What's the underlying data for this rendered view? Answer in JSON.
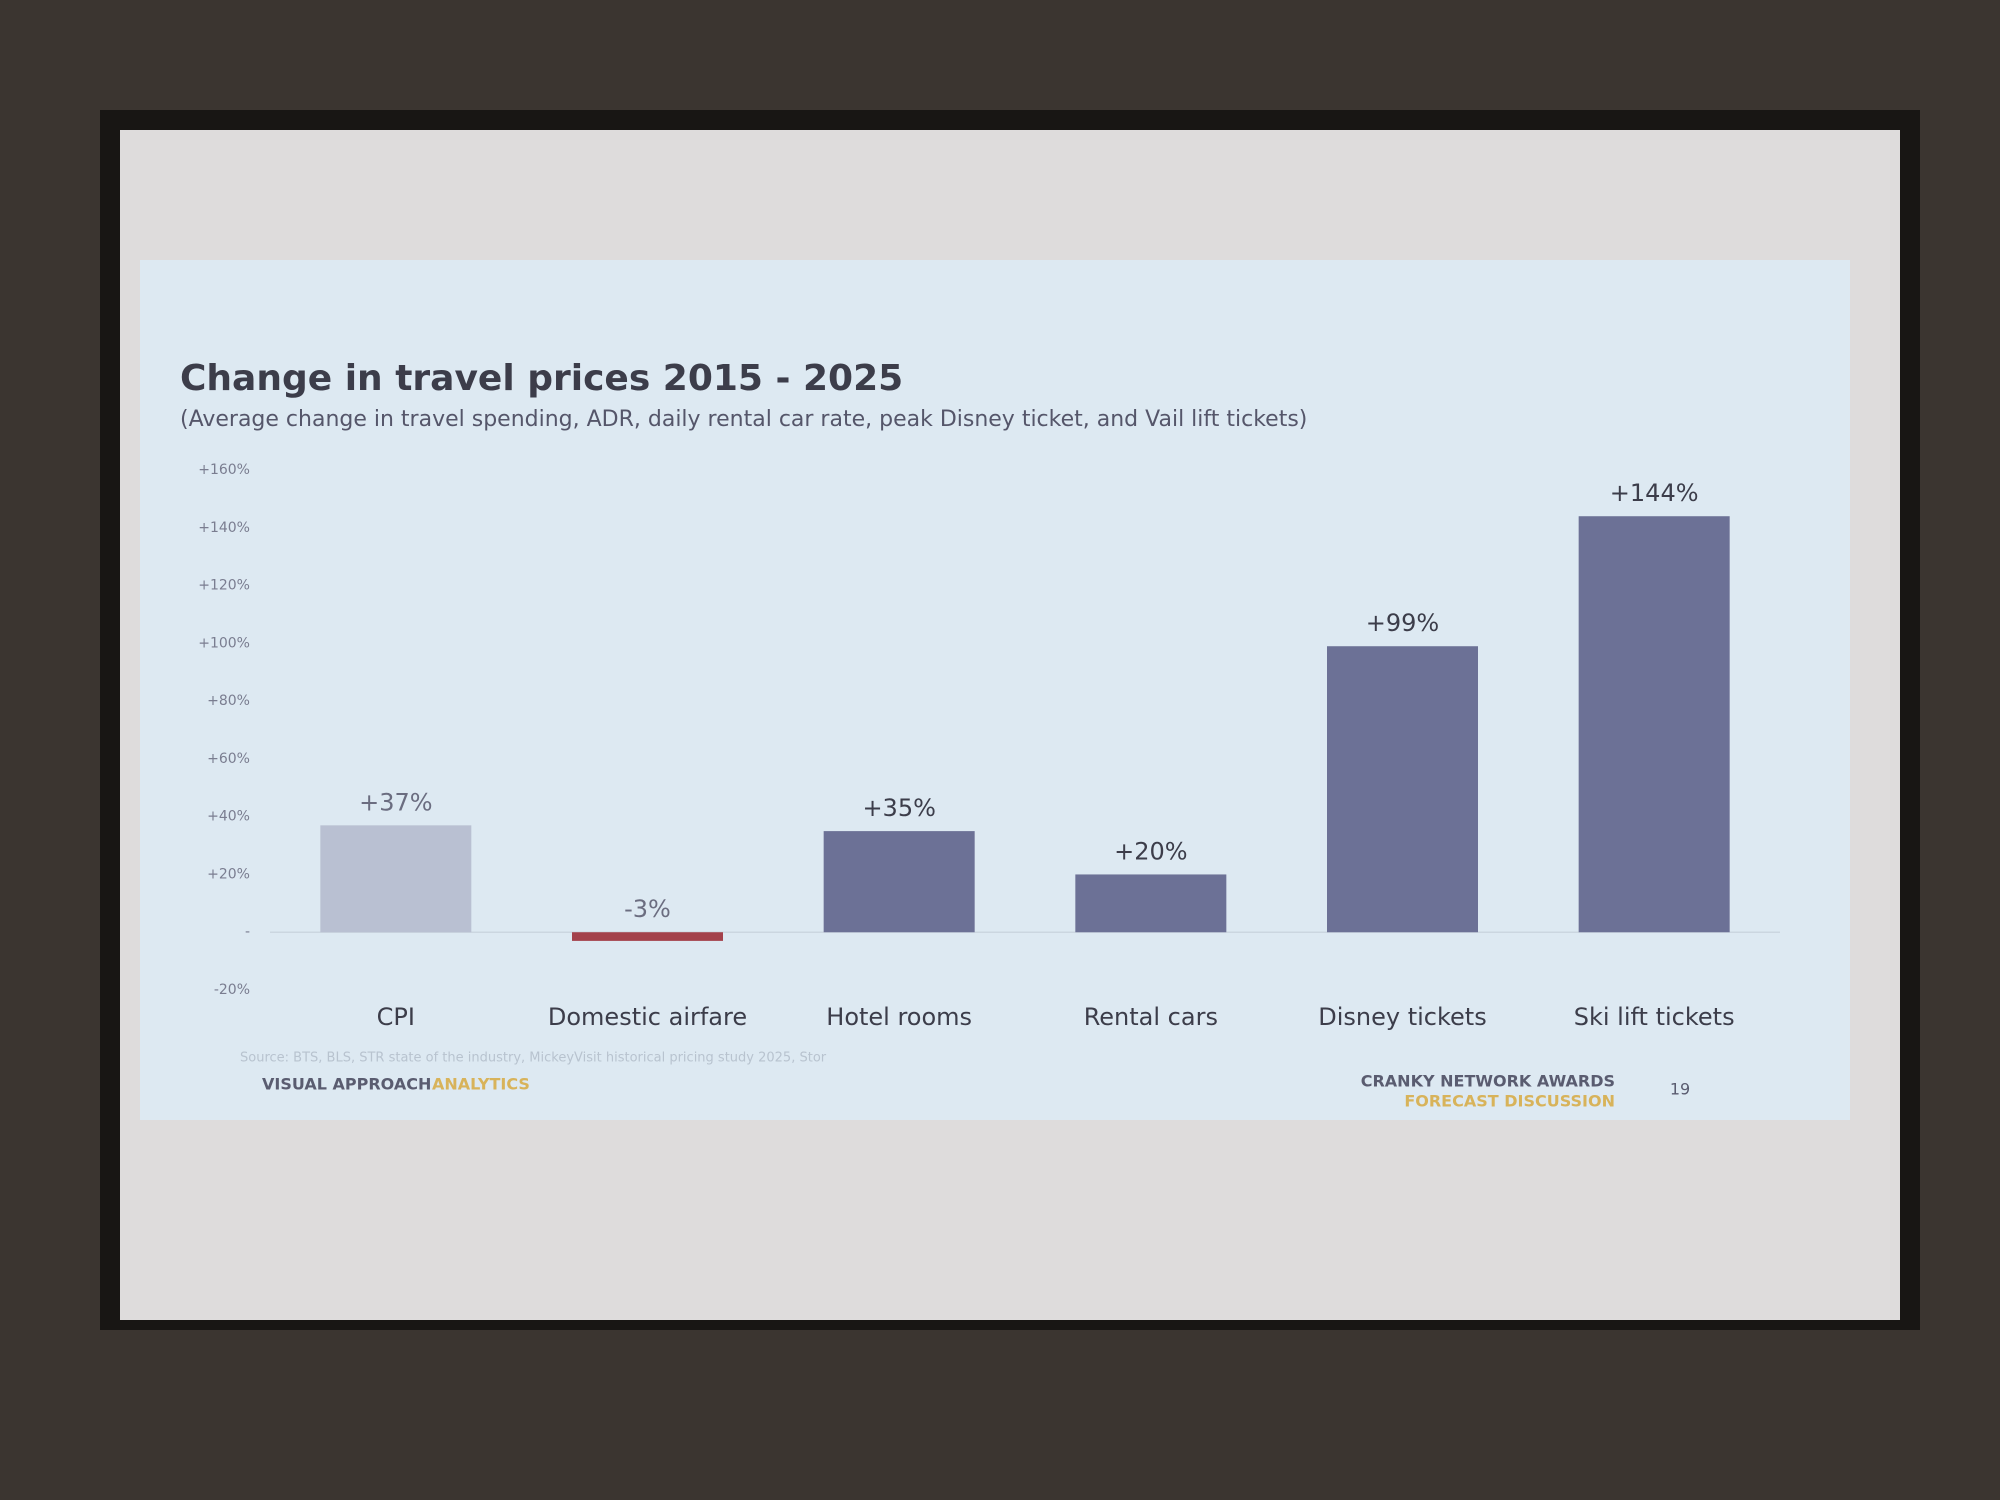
{
  "chart_data": {
    "type": "bar",
    "title": "Change in travel prices 2015 - 2025",
    "subtitle": "(Average change in travel spending, ADR, daily rental car rate, peak Disney ticket, and Vail lift tickets)",
    "categories": [
      "CPI",
      "Domestic airfare",
      "Hotel rooms",
      "Rental cars",
      "Disney tickets",
      "Ski lift tickets"
    ],
    "values": [
      37,
      -3,
      35,
      20,
      99,
      144
    ],
    "value_labels": [
      "+37%",
      "-3%",
      "+35%",
      "+20%",
      "+99%",
      "+144%"
    ],
    "colors": [
      "#b9c0d2",
      "#a3414b",
      "#6c7196",
      "#6c7196",
      "#6c7196",
      "#6c7196"
    ],
    "ylim": [
      -20,
      160
    ],
    "yticks": [
      {
        "value": -20,
        "label": "-20%"
      },
      {
        "value": 0,
        "label": "-"
      },
      {
        "value": 20,
        "label": "+20%"
      },
      {
        "value": 40,
        "label": "+40%"
      },
      {
        "value": 60,
        "label": "+60%"
      },
      {
        "value": 80,
        "label": "+80%"
      },
      {
        "value": 100,
        "label": "+100%"
      },
      {
        "value": 120,
        "label": "+120%"
      },
      {
        "value": 140,
        "label": "+140%"
      },
      {
        "value": 160,
        "label": "+160%"
      }
    ],
    "grid": false,
    "source": "Source: BTS, BLS, STR state of the industry, MickeyVisit historical pricing study 2025, Stor",
    "footer": {
      "brand": "VISUAL APPROACH",
      "brand_accent": "ANALYTICS",
      "event": "CRANKY NETWORK AWARDS",
      "event_sub": "FORECAST DISCUSSION",
      "page": "19"
    }
  }
}
